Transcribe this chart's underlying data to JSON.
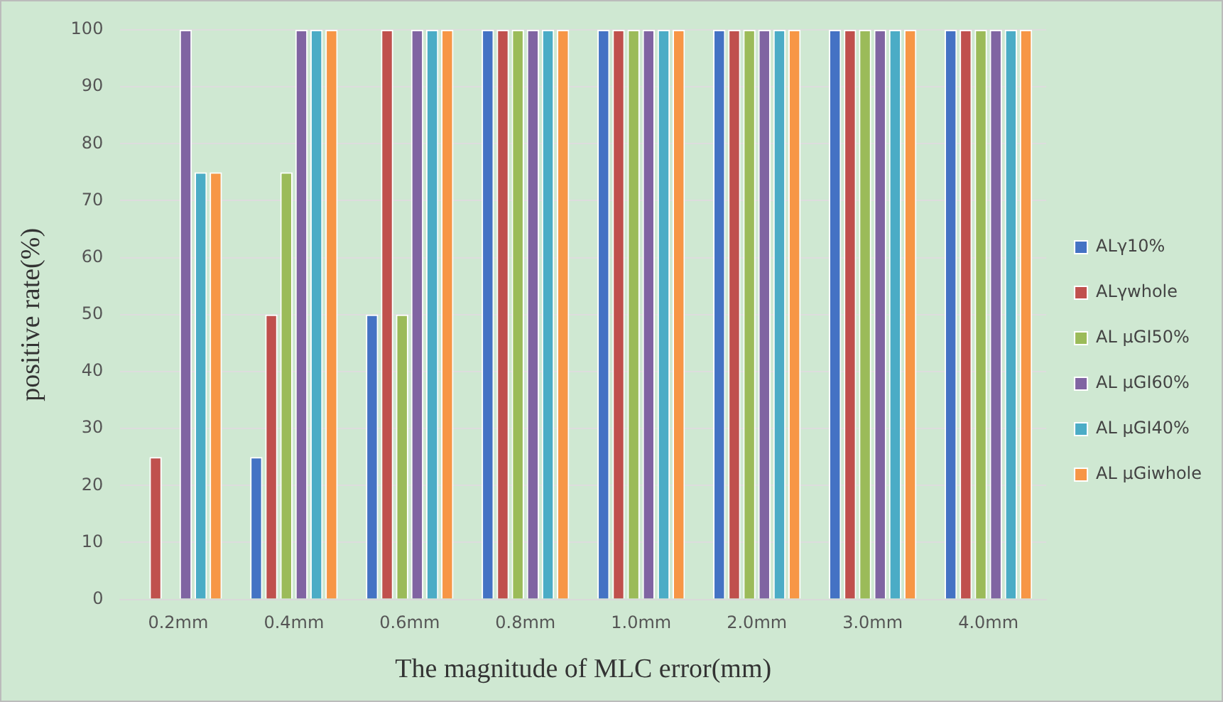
{
  "chart_data": {
    "type": "bar",
    "xlabel": "The magnitude of MLC error(mm)",
    "ylabel": "positive rate(%)",
    "categories": [
      "0.2mm",
      "0.4mm",
      "0.6mm",
      "0.8mm",
      "1.0mm",
      "2.0mm",
      "3.0mm",
      "4.0mm"
    ],
    "series": [
      {
        "name": "ALγ10%",
        "color": "#4472c4",
        "values": [
          0,
          25,
          50,
          100,
          100,
          100,
          100,
          100
        ]
      },
      {
        "name": "ALγwhole",
        "color": "#c0504d",
        "values": [
          25,
          50,
          100,
          100,
          100,
          100,
          100,
          100
        ]
      },
      {
        "name": "AL μGI50%",
        "color": "#9bbb59",
        "values": [
          0,
          75,
          50,
          100,
          100,
          100,
          100,
          100
        ]
      },
      {
        "name": "AL μGI60%",
        "color": "#8064a2",
        "values": [
          100,
          100,
          100,
          100,
          100,
          100,
          100,
          100
        ]
      },
      {
        "name": "AL μGI40%",
        "color": "#4bacc6",
        "values": [
          75,
          100,
          100,
          100,
          100,
          100,
          100,
          100
        ]
      },
      {
        "name": "AL μGiwhole",
        "color": "#f79646",
        "values": [
          75,
          100,
          100,
          100,
          100,
          100,
          100,
          100
        ]
      }
    ],
    "ylim": [
      0,
      100
    ],
    "yticks": [
      0,
      10,
      20,
      30,
      40,
      50,
      60,
      70,
      80,
      90,
      100
    ],
    "grid": "y",
    "legend": "right"
  }
}
